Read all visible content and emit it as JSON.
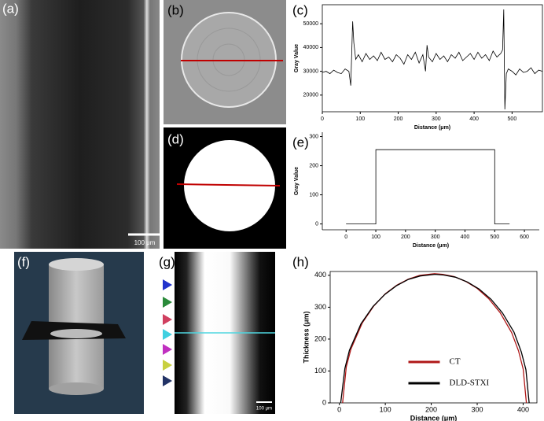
{
  "panel_labels": [
    "(a)",
    "(b)",
    "(c)",
    "(d)",
    "(e)",
    "(f)",
    "(g)",
    "(h)"
  ],
  "scale_bars": [
    "100 μm",
    "100 μm"
  ],
  "chart_data": [
    {
      "type": "line",
      "xlabel": "Distance (μm)",
      "ylabel": "Gray Value",
      "color": "#000000",
      "x": [
        0,
        10,
        20,
        30,
        40,
        50,
        60,
        70,
        75,
        80,
        83,
        88,
        95,
        105,
        115,
        125,
        135,
        145,
        155,
        165,
        175,
        185,
        195,
        205,
        215,
        225,
        235,
        245,
        255,
        265,
        272,
        276,
        280,
        290,
        300,
        310,
        320,
        330,
        340,
        350,
        360,
        370,
        380,
        390,
        400,
        410,
        420,
        430,
        440,
        450,
        460,
        470,
        475,
        478,
        481,
        485,
        490,
        500,
        510,
        520,
        530,
        540,
        550,
        560,
        570,
        580
      ],
      "values": [
        29500,
        30000,
        29000,
        30500,
        29500,
        29000,
        31000,
        30000,
        24000,
        51000,
        42000,
        35000,
        37000,
        34000,
        37500,
        35000,
        36500,
        34500,
        38000,
        35000,
        36000,
        34000,
        37000,
        35500,
        33000,
        37000,
        35000,
        38000,
        33500,
        37000,
        30000,
        41000,
        36000,
        34000,
        37500,
        35000,
        36500,
        34000,
        37000,
        35500,
        38000,
        34500,
        36000,
        37500,
        35000,
        38000,
        35500,
        37000,
        34500,
        38500,
        36000,
        37500,
        39000,
        56000,
        14000,
        29000,
        31000,
        30000,
        28500,
        31000,
        29500,
        30000,
        31500,
        29000,
        30500,
        30000
      ],
      "xlim": [
        0,
        580
      ],
      "xticks": [
        0,
        100,
        200,
        300,
        400,
        500
      ],
      "ylim": [
        13000,
        58000
      ],
      "yticks": [
        20000,
        30000,
        40000,
        50000
      ]
    },
    {
      "type": "line",
      "xlabel": "Distance (μm)",
      "ylabel": "Gray Value",
      "color": "#000000",
      "x": [
        0,
        100,
        100,
        500,
        500,
        550
      ],
      "values": [
        0,
        0,
        255,
        255,
        0,
        0
      ],
      "xlim": [
        -80,
        650
      ],
      "xticks": [
        0,
        100,
        200,
        300,
        400,
        500,
        600
      ],
      "ylim": [
        -20,
        315
      ],
      "yticks": [
        0,
        100,
        200,
        300
      ]
    },
    {
      "type": "line",
      "xlabel": "Distance (μm)",
      "ylabel": "Thickness (μm)",
      "legend": "lower center",
      "series": [
        {
          "name": "CT",
          "color": "#b01818",
          "x": [
            7,
            15,
            25,
            50,
            75,
            100,
            125,
            150,
            175,
            207,
            225,
            250,
            275,
            300,
            325,
            350,
            375,
            390,
            400,
            407
          ],
          "values": [
            0,
            113,
            168,
            251,
            304,
            342,
            369,
            388,
            400,
            405,
            403,
            396,
            381,
            359,
            327,
            283,
            220,
            163,
            106,
            0
          ]
        },
        {
          "name": "DLD-STXI",
          "color": "#000000",
          "x": [
            3,
            12,
            22,
            47,
            73,
            99,
            124,
            150,
            176,
            208,
            227,
            253,
            279,
            304,
            330,
            355,
            380,
            396,
            406,
            413
          ],
          "values": [
            0,
            108,
            165,
            248,
            302,
            340,
            367,
            387,
            398,
            403,
            401,
            394,
            379,
            357,
            325,
            282,
            222,
            160,
            104,
            0
          ]
        }
      ],
      "xlim": [
        -20,
        430
      ],
      "xticks": [
        0,
        100,
        200,
        300,
        400
      ],
      "ylim": [
        0,
        412
      ],
      "yticks": [
        0,
        100,
        200,
        300,
        400
      ]
    }
  ]
}
